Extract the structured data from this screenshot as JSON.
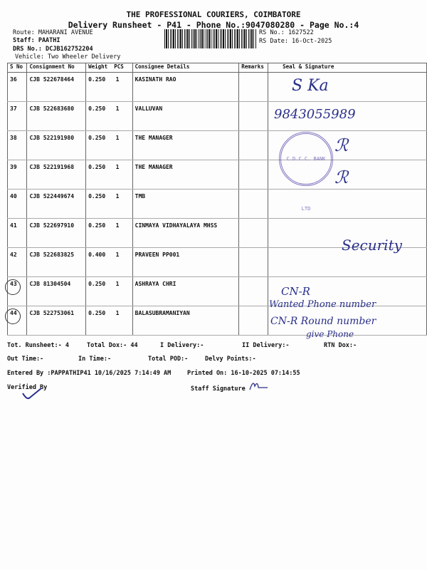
{
  "header": {
    "company": "THE PROFESSIONAL COURIERS, COIMBATORE",
    "title": "Delivery Runsheet - P41 - Phone No.:9047080280 - Page No.:4",
    "route": "Route: MAHARANI AVENUE",
    "staff": "Staff: PAATHI",
    "drs": "DRS No.: DCJB162752204",
    "vehicle": "Vehicle: Two Wheeler Delivery",
    "rs_no": "RS No.: 1627522",
    "rs_date": "RS Date: 16-Oct-2025"
  },
  "columns": [
    "S No",
    "Consignment No",
    "Weight",
    "PCS",
    "Consignee Details",
    "Remarks",
    "Seal & Signature"
  ],
  "rows": [
    {
      "sno": "36",
      "cn": "CJB 522678464",
      "weight": "0.250",
      "pcs": "1",
      "consignee": "KASINATH RAO"
    },
    {
      "sno": "37",
      "cn": "CJB 522683680",
      "weight": "0.250",
      "pcs": "1",
      "consignee": "VALLUVAN"
    },
    {
      "sno": "38",
      "cn": "CJB 522191980",
      "weight": "0.250",
      "pcs": "1",
      "consignee": "THE MANAGER"
    },
    {
      "sno": "39",
      "cn": "CJB 522191968",
      "weight": "0.250",
      "pcs": "1",
      "consignee": "THE MANAGER"
    },
    {
      "sno": "40",
      "cn": "CJB 522449674",
      "weight": "0.250",
      "pcs": "1",
      "consignee": "TMB"
    },
    {
      "sno": "41",
      "cn": "CJB 522697910",
      "weight": "0.250",
      "pcs": "1",
      "consignee": "CINMAYA VIDHAYALAYA MHSS"
    },
    {
      "sno": "42",
      "cn": "CJB 522683825",
      "weight": "0.400",
      "pcs": "1",
      "consignee": "PRAVEEN PP001"
    },
    {
      "sno": "43",
      "cn": "CJB 81304504",
      "weight": "0.250",
      "pcs": "1",
      "consignee": "ASHRAYA CHRI"
    },
    {
      "sno": "44",
      "cn": "CJB 522753061",
      "weight": "0.250",
      "pcs": "1",
      "consignee": "BALASUBRAMANIYAN"
    }
  ],
  "handwriting": {
    "r36": "S Ka",
    "r37": "9843055989",
    "r41": "Security",
    "r43": "CN-R",
    "r43b": "Wanted Phone number",
    "r44": "CN-R Round number",
    "r44b": "give Phone"
  },
  "stamp": "C.D.C.C. BANK LTD",
  "footer": {
    "tot_runsheet": "Tot. Runsheet:- 4",
    "total_dox": "Total Dox:-   44",
    "i_delivery": "I Delivery:-",
    "ii_delivery": "II Delivery:-",
    "rtn_dox": "RTN Dox:-",
    "out_time": "Out Time:-",
    "in_time": "In Time:-",
    "total_pod": "Total POD:-",
    "delvy_points": "Delvy Points:-",
    "entered_by": "Entered By :PAPPATHIP41 10/16/2025 7:14:49 AM",
    "printed_on": "Printed On: 16-10-2025 07:14:55",
    "verified_by": "Verified By",
    "staff_signature": "Staff Signature"
  }
}
